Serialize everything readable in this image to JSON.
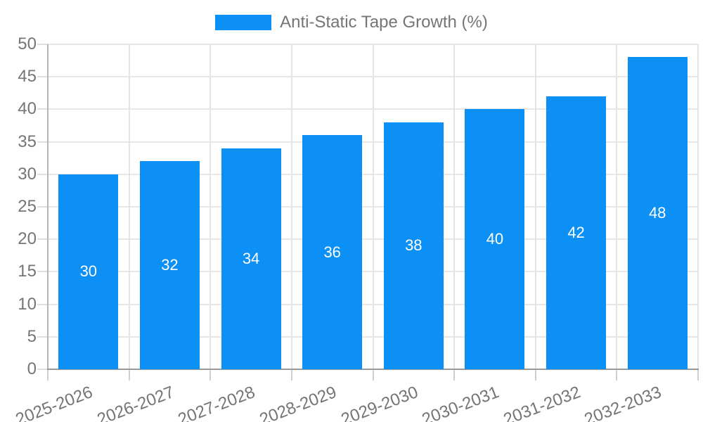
{
  "chart_data": {
    "type": "bar",
    "title": "",
    "legend": {
      "label": "Anti-Static Tape Growth (%)",
      "position": "top-center"
    },
    "categories": [
      "2025-2026",
      "2026-2027",
      "2027-2028",
      "2028-2029",
      "2029-2030",
      "2030-2031",
      "2031-2032",
      "2032-2033"
    ],
    "series": [
      {
        "name": "Anti-Static Tape Growth (%)",
        "color": "#0d90f5",
        "values": [
          30,
          32,
          34,
          36,
          38,
          40,
          42,
          48
        ]
      }
    ],
    "value_labels_shown": true,
    "xlabel": "",
    "ylabel": "",
    "ylim": [
      0,
      50
    ],
    "yticks": [
      0,
      5,
      10,
      15,
      20,
      25,
      30,
      35,
      40,
      45,
      50
    ],
    "grid": true,
    "x_label_rotation_deg": -21
  },
  "colors": {
    "bar": "#0d90f5",
    "bar_label_text": "#ffffff",
    "axis_text": "#757575",
    "legend_text": "#757575",
    "gridline": "#e7e7e7",
    "x_axis_line": "#9a9a9a",
    "y_axis_line": "#b5b5b5"
  }
}
